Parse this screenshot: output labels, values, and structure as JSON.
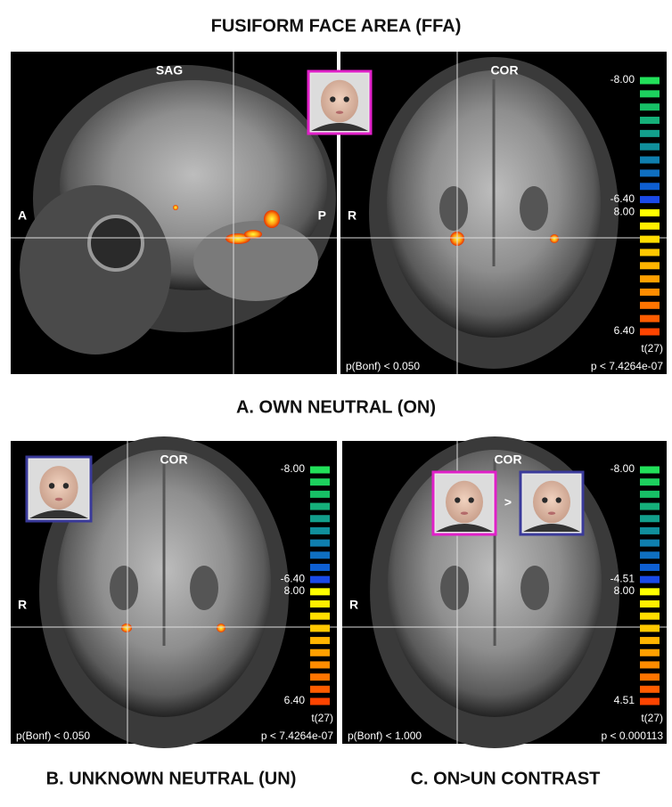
{
  "title": "FUSIFORM FACE AREA (FFA)",
  "captions": [
    "A. OWN NEUTRAL (ON)",
    "B. UNKNOWN NEUTRAL (UN)",
    "C. ON>UN CONTRAST"
  ],
  "views": [
    {
      "view": "SAG",
      "left": "A",
      "right": "P"
    },
    {
      "view": "COR",
      "left": "R",
      "colorbar": [
        "-8.00",
        "-6.40",
        "8.00",
        "6.40"
      ],
      "unit": "t(27)",
      "p_bonf": "p(Bonf) < 0.050",
      "p": "p < 7.4264e-07"
    },
    {
      "view": "COR",
      "left": "R",
      "colorbar": [
        "-8.00",
        "-6.40",
        "8.00",
        "6.40"
      ],
      "unit": "t(27)",
      "p_bonf": "p(Bonf) < 0.050",
      "p": "p < 7.4264e-07"
    },
    {
      "view": "COR",
      "left": "R",
      "colorbar": [
        "-8.00",
        "-4.51",
        "8.00",
        "4.51"
      ],
      "unit": "t(27)",
      "p_bonf": "p(Bonf) < 1.000",
      "p": "p < 0.000113"
    }
  ],
  "contrast_symbol": ">"
}
